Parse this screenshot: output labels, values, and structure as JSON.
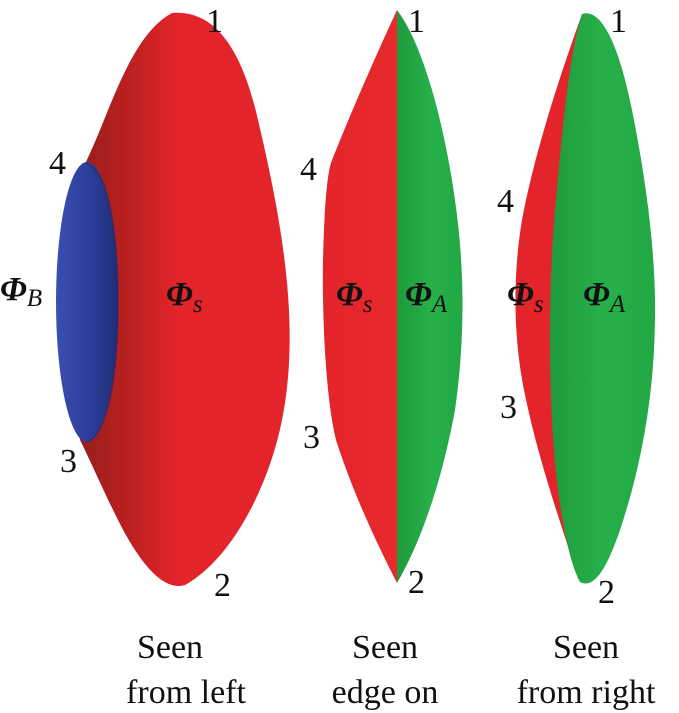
{
  "colors": {
    "surface_s": "#e3242b",
    "surface_s_dark": "#8e1d1d",
    "surface_a": "#22aa44",
    "surface_b": "#2b3c96",
    "text": "#111111"
  },
  "symbol": "Φ",
  "views": [
    {
      "caption_line1": "Seen",
      "caption_line2": "from left",
      "vertices": [
        "1",
        "2",
        "3",
        "4"
      ],
      "surfaces": [
        {
          "symbol": "Φ",
          "subscript": "B",
          "color": "surface_b"
        },
        {
          "symbol": "Φ",
          "subscript": "s",
          "color": "surface_s"
        }
      ]
    },
    {
      "caption_line1": "Seen",
      "caption_line2": "edge on",
      "vertices": [
        "1",
        "2",
        "3",
        "4"
      ],
      "surfaces": [
        {
          "symbol": "Φ",
          "subscript": "s",
          "color": "surface_s"
        },
        {
          "symbol": "Φ",
          "subscript": "A",
          "color": "surface_a"
        }
      ]
    },
    {
      "caption_line1": "Seen",
      "caption_line2": "from right",
      "vertices": [
        "1",
        "2",
        "3",
        "4"
      ],
      "surfaces": [
        {
          "symbol": "Φ",
          "subscript": "s",
          "color": "surface_s"
        },
        {
          "symbol": "Φ",
          "subscript": "A",
          "color": "surface_a"
        }
      ]
    }
  ]
}
